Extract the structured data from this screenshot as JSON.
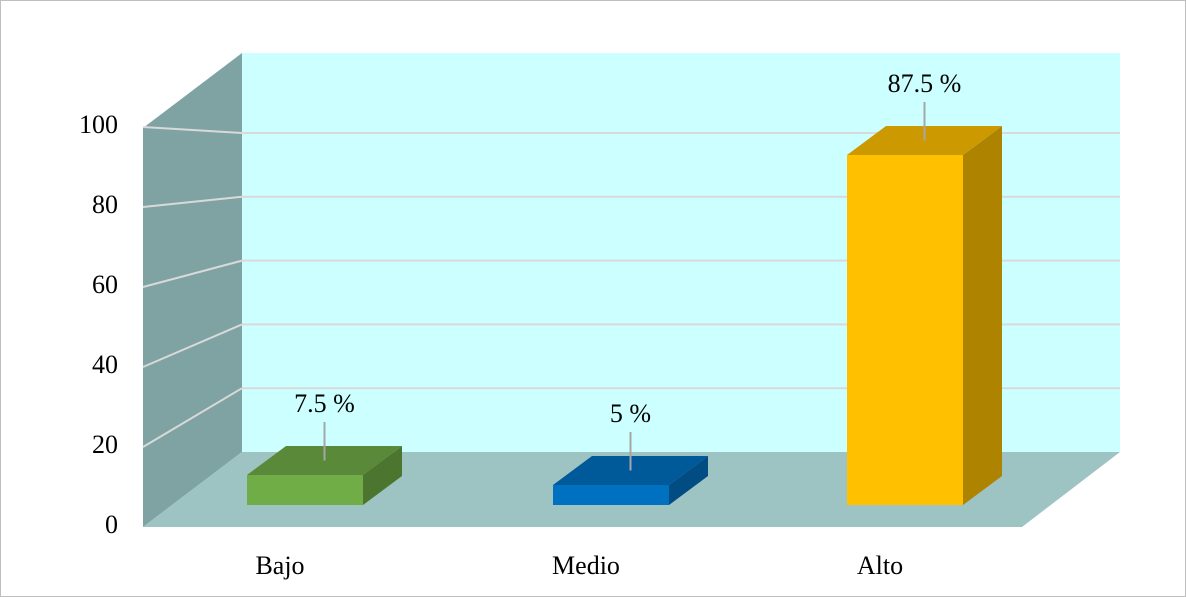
{
  "chart_data": {
    "type": "bar3d",
    "categories": [
      "Bajo",
      "Medio",
      "Alto"
    ],
    "values": [
      7.5,
      5,
      87.5
    ],
    "value_labels": [
      "7.5 %",
      "5 %",
      "87.5 %"
    ],
    "colors": [
      "#70ad47",
      "#0070c0",
      "#ffc000"
    ],
    "ylim": [
      0,
      100
    ],
    "yticks": [
      0,
      20,
      40,
      60,
      80,
      100
    ],
    "grid": true
  }
}
